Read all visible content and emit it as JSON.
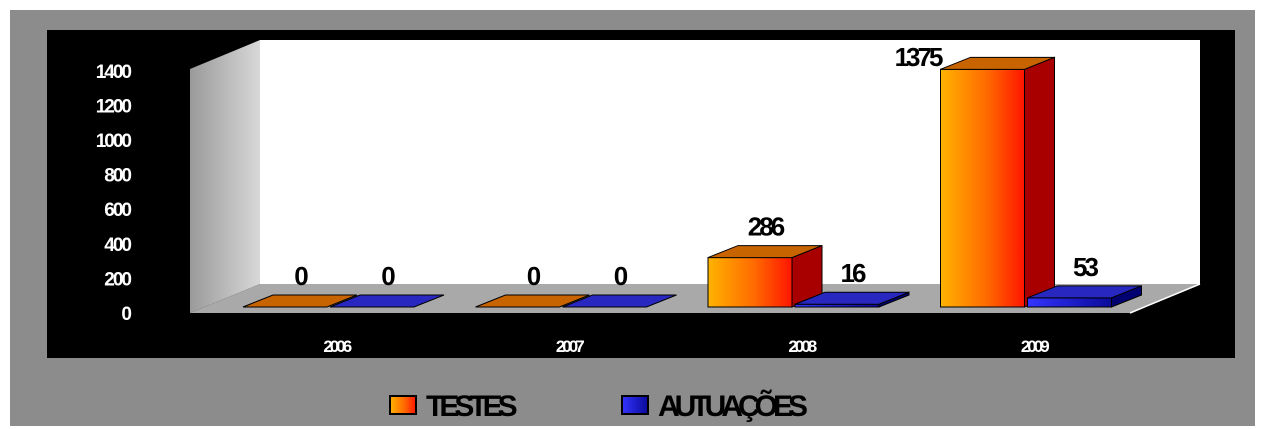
{
  "chart_data": {
    "type": "bar",
    "title": "",
    "xlabel": "",
    "ylabel": "",
    "categories": [
      "2006",
      "2007",
      "2008",
      "2009"
    ],
    "series": [
      {
        "name": "TESTES",
        "values": [
          0,
          0,
          286,
          1375
        ],
        "color": "#ff4a00"
      },
      {
        "name": "AUTUAÇÕES",
        "values": [
          0,
          0,
          16,
          53
        ],
        "color": "#1010a8"
      }
    ],
    "data_labels": [
      [
        "0",
        "0",
        "286",
        "1375"
      ],
      [
        "0",
        "0",
        "16",
        "53"
      ]
    ],
    "y_ticks": [
      "0",
      "200",
      "400",
      "600",
      "800",
      "1000",
      "1200",
      "1400"
    ],
    "ylim": [
      0,
      1400
    ],
    "style": "3d-column",
    "legend_position": "bottom",
    "grid": false
  },
  "colors": {
    "frame": "#8c8c8c",
    "plot_background": "#000000",
    "wall": "#ffffff",
    "side_wall": "#c0c0c0",
    "floor": "#a8a8a8"
  }
}
